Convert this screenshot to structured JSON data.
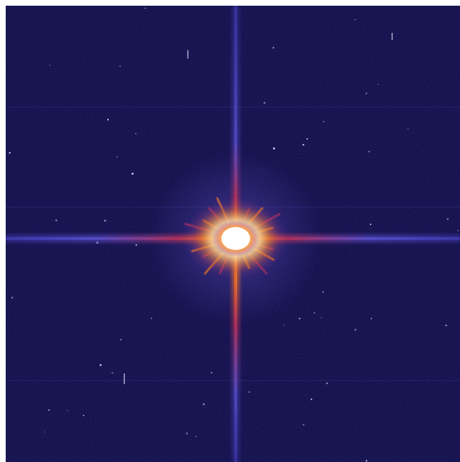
{
  "image": {
    "subject": "star-diffraction-spikes",
    "palette": {
      "background": "#120e4a",
      "background_edge": "#0c0a3a",
      "grid_line": "#2d2a78",
      "spike_outer": "#4a44c8",
      "spike_mid": "#b0305a",
      "spike_warm": "#f07a20",
      "core_hot": "#ffe9a0",
      "core_white": "#ffffff",
      "faint_star": "#e8e6ff"
    }
  }
}
